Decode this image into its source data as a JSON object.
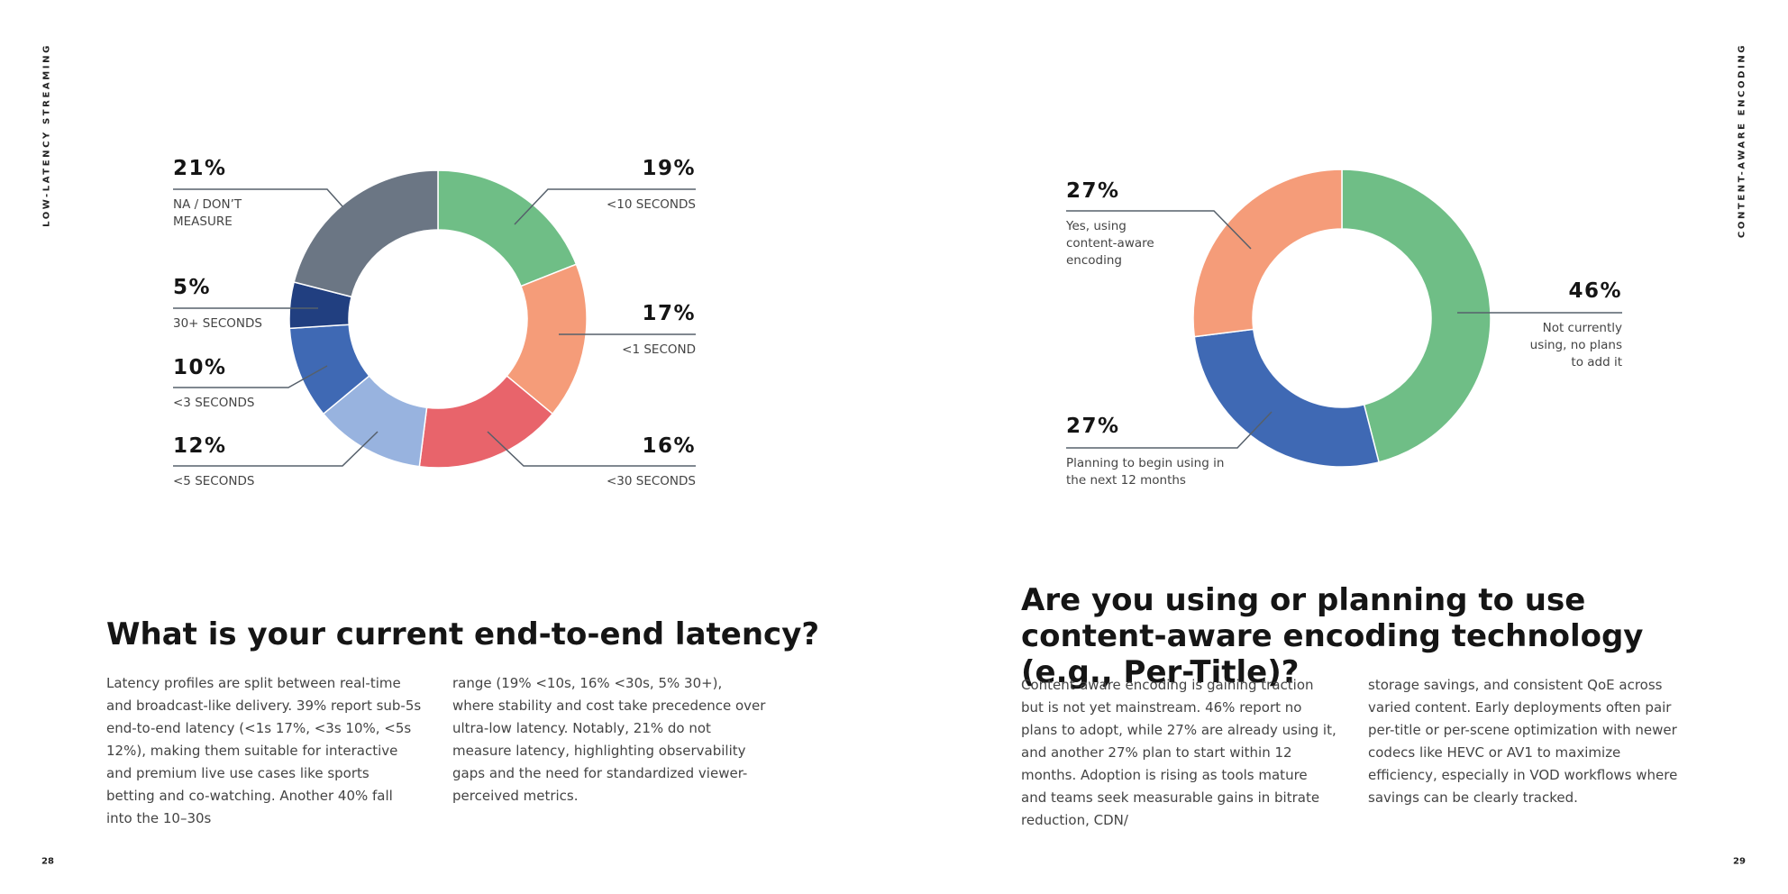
{
  "pages": [
    {
      "side_label": "LOW-LATENCY STREAMING",
      "page_number": "28",
      "question": "What is your current end-to-end latency?",
      "body": [
        "Latency profiles are split between real-time and broadcast-like delivery. 39% report sub-5s end-to-end latency (<1s 17%, <3s 10%, <5s 12%), making them suitable for interactive and premium live use cases like sports betting and co-watching. Another 40% fall into the 10–30s",
        "range (19% <10s, 16% <30s, 5% 30+), where stability and cost take precedence over ultra-low latency. Notably, 21% do not measure latency, highlighting observability gaps and the need for standardized viewer-perceived metrics."
      ]
    },
    {
      "side_label": "CONTENT-AWARE ENCODING",
      "page_number": "29",
      "question": "Are you using or planning to use content-aware encoding technology (e.g., Per-Title)?",
      "body": [
        "Content-aware encoding is gaining traction but is not yet mainstream. 46% report no plans to adopt, while 27% are already using it, and another 27% plan to start within 12 months. Adoption is rising as tools mature and teams seek measurable gains in bitrate reduction, CDN/",
        "storage savings, and consistent QoE across varied content. Early deployments often pair per-title or per-scene optimization with newer codecs like HEVC or AV1 to maximize efficiency, especially in VOD workflows where savings can be clearly tracked."
      ]
    }
  ],
  "chart_data": [
    {
      "type": "donut",
      "categories": [
        "<10 SECONDS",
        "<1 SECOND",
        "<30 SECONDS",
        "<5 SECONDS",
        "<3 SECONDS",
        "30+ SECONDS",
        "NA / DON’T MEASURE"
      ],
      "values": [
        19,
        17,
        16,
        12,
        10,
        5,
        21
      ],
      "value_labels": [
        "19%",
        "17%",
        "16%",
        "12%",
        "10%",
        "5%",
        "21%"
      ],
      "colors": [
        "#6fbe86",
        "#f59c79",
        "#e8646b",
        "#98b3df",
        "#3f69b4",
        "#213f80",
        "#6b7684"
      ]
    },
    {
      "type": "donut",
      "categories": [
        "Not currently using, no plans to add it",
        "Planning to begin using in the next 12 months",
        "Yes, using content-aware encoding"
      ],
      "values": [
        46,
        27,
        27
      ],
      "value_labels": [
        "46%",
        "27%",
        "27%"
      ],
      "colors": [
        "#6fbe86",
        "#3f69b4",
        "#f59c79"
      ]
    }
  ]
}
